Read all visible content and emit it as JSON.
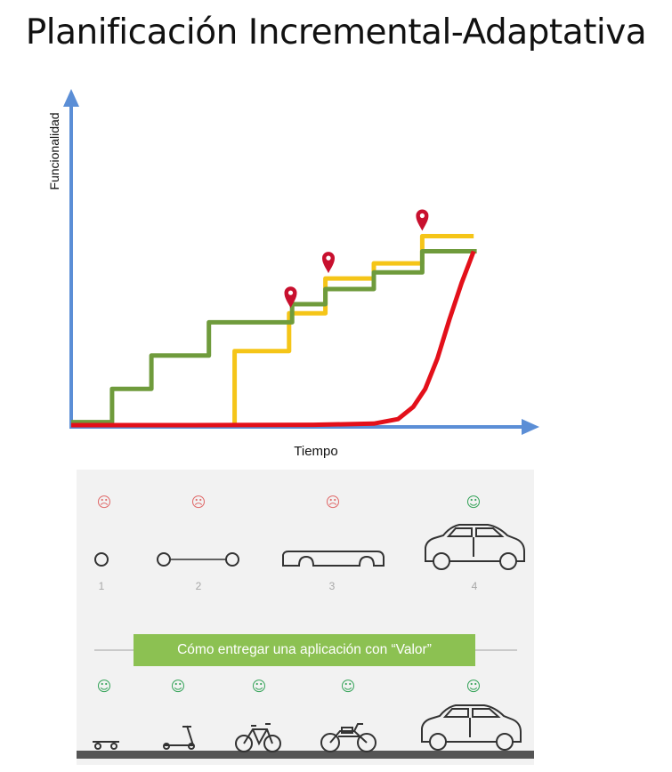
{
  "title": "Planificación Incremental-Adaptativa",
  "colors": {
    "axis": "#5b8ed6",
    "adaptive_line": "#f5c518",
    "incremental_line": "#6f9b3c",
    "traditional_line": "#e3101a",
    "milestone_pin": "#c8102e",
    "banner": "#8cc152"
  },
  "chart_data": {
    "type": "line",
    "xlabel": "Tiempo",
    "ylabel": "Funcionalidad",
    "series": [
      {
        "color": "yellow",
        "points": [
          [
            5.4,
            0
          ],
          [
            5.4,
            2.45
          ],
          [
            7.2,
            2.45
          ],
          [
            7.2,
            3.7
          ],
          [
            8.4,
            3.7
          ],
          [
            8.4,
            4.85
          ],
          [
            10,
            4.85
          ],
          [
            10,
            5.35
          ],
          [
            11.6,
            5.35
          ],
          [
            11.6,
            6.25
          ],
          [
            13.3,
            6.25
          ]
        ]
      },
      {
        "color": "green",
        "points": [
          [
            0,
            0.1
          ],
          [
            1.35,
            0.1
          ],
          [
            1.35,
            1.2
          ],
          [
            2.65,
            1.2
          ],
          [
            2.65,
            2.3
          ],
          [
            4.55,
            2.3
          ],
          [
            4.55,
            3.4
          ],
          [
            7.3,
            3.4
          ],
          [
            7.3,
            4
          ],
          [
            8.4,
            4
          ],
          [
            8.4,
            4.5
          ],
          [
            10,
            4.5
          ],
          [
            10,
            5.05
          ],
          [
            11.6,
            5.05
          ],
          [
            11.6,
            5.75
          ],
          [
            13.4,
            5.75
          ]
        ]
      },
      {
        "color": "red",
        "points": [
          [
            0,
            0
          ],
          [
            4,
            0
          ],
          [
            8,
            0.01
          ],
          [
            10,
            0.05
          ],
          [
            10.8,
            0.2
          ],
          [
            11.3,
            0.6
          ],
          [
            11.7,
            1.2
          ],
          [
            12.1,
            2.2
          ],
          [
            12.5,
            3.5
          ],
          [
            12.9,
            4.7
          ],
          [
            13.3,
            5.75
          ]
        ]
      }
    ],
    "markers": [
      {
        "type": "pin",
        "x": 7.25
      },
      {
        "type": "pin",
        "x": 8.5
      },
      {
        "type": "pin",
        "x": 11.6
      }
    ]
  },
  "illustration": {
    "top_row": [
      {
        "step": "1",
        "mood": "unhappy",
        "object": "wheel"
      },
      {
        "step": "2",
        "mood": "unhappy",
        "object": "axle-with-two-wheels"
      },
      {
        "step": "3",
        "mood": "unhappy",
        "object": "car-chassis"
      },
      {
        "step": "4",
        "mood": "happy",
        "object": "car"
      }
    ],
    "caption": "Cómo entregar una aplicación con “Valor”",
    "bottom_row": [
      {
        "mood": "happy",
        "object": "skateboard"
      },
      {
        "mood": "happy",
        "object": "scooter"
      },
      {
        "mood": "happy",
        "object": "bicycle"
      },
      {
        "mood": "happy",
        "object": "motorcycle"
      },
      {
        "mood": "happy",
        "object": "car"
      }
    ]
  }
}
